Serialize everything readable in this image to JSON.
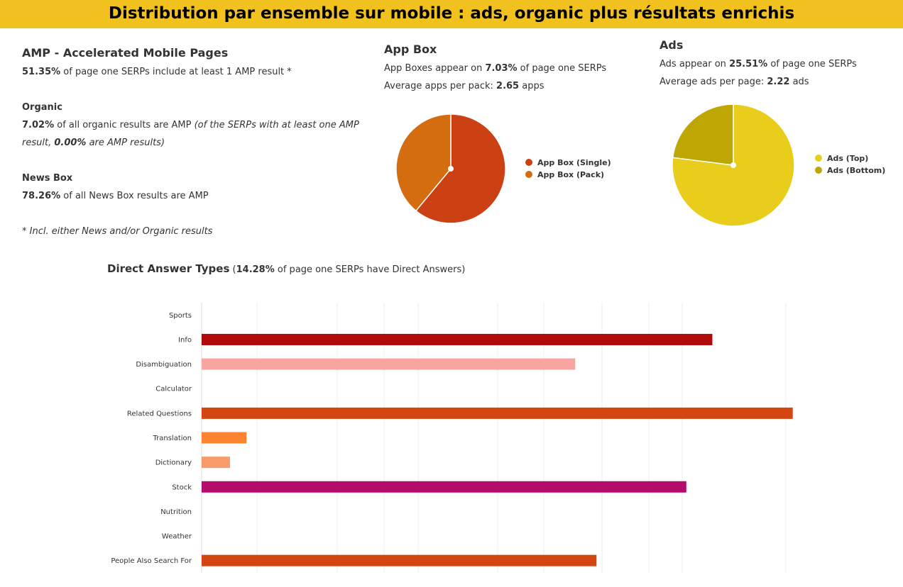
{
  "banner": {
    "title": "Distribution par ensemble sur mobile  : ads, organic plus résultats enrichis"
  },
  "amp": {
    "title": "AMP - Accelerated Mobile Pages",
    "line1_value": "51.35%",
    "line1_text": " of page one SERPs include at least 1 AMP result *",
    "organic": {
      "title": "Organic",
      "value": "7.02%",
      "text": " of all organic results are AMP ",
      "italic_a": "(of the SERPs with at least one AMP",
      "italic_b": "result, ",
      "italic_value": "0.00%",
      "italic_c": " are AMP results)"
    },
    "news": {
      "title": "News Box",
      "value": "78.26%",
      "text": " of all News Box results are AMP"
    },
    "footnote": "* Incl. either News and/or Organic results"
  },
  "appbox": {
    "title": "App Box",
    "line1_pre": "App Boxes appear on ",
    "line1_value": "7.03%",
    "line1_post": " of page one SERPs",
    "line2_pre": "Average apps per pack: ",
    "line2_value": "2.65",
    "line2_post": " apps"
  },
  "ads": {
    "title": "Ads",
    "line1_pre": "Ads appear on ",
    "line1_value": "25.51%",
    "line1_post": " of page one SERPs",
    "line2_pre": "Average ads per page: ",
    "line2_value": "2.22",
    "line2_post": " ads"
  },
  "direct": {
    "title": "Direct Answer Types",
    "sub_pre": " (",
    "sub_value": "14.28%",
    "sub_post": " of page one SERPs have Direct Answers)"
  },
  "chart_data": [
    {
      "type": "pie",
      "categories": [
        "App Box (Single)",
        "App Box (Pack)"
      ],
      "values": [
        61,
        39
      ],
      "colors": [
        "#cc4114",
        "#d46d10"
      ],
      "legend": "right"
    },
    {
      "type": "pie",
      "categories": [
        "Ads (Top)",
        "Ads (Bottom)"
      ],
      "values": [
        77,
        23
      ],
      "colors": [
        "#e8cd1c",
        "#bea604"
      ],
      "legend": "right"
    },
    {
      "type": "bar",
      "orientation": "horizontal",
      "categories": [
        "Sports",
        "Info",
        "Disambiguation",
        "Calculator",
        "Related Questions",
        "Translation",
        "Dictionary",
        "Stock",
        "Nutrition",
        "Weather",
        "People Also Search For"
      ],
      "values": [
        0,
        21.6,
        15.8,
        0,
        25.0,
        1.9,
        1.2,
        20.5,
        0,
        0,
        16.7
      ],
      "colors": [
        "#cccccc",
        "#b00b0b",
        "#f8a5a2",
        "#cccccc",
        "#d44611",
        "#fb8332",
        "#f89a6a",
        "#b40c6c",
        "#cccccc",
        "#cccccc",
        "#d44611"
      ],
      "xlim": [
        0,
        26
      ],
      "grid": true
    }
  ]
}
